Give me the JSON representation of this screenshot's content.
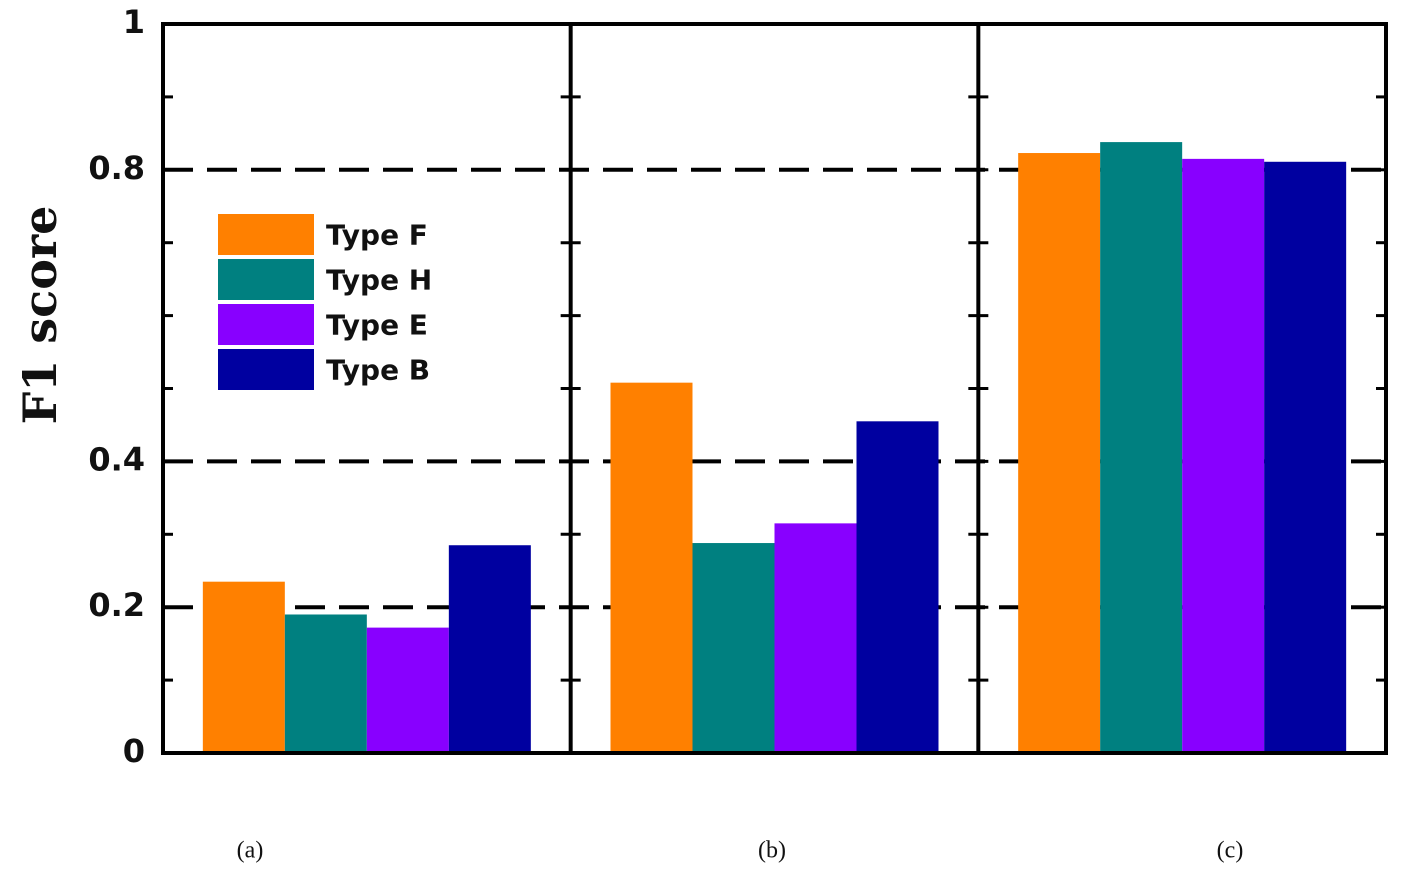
{
  "chart_data": {
    "type": "bar",
    "ylabel": "F1 score",
    "ylim": [
      0,
      1
    ],
    "y_tick_labels": [
      {
        "value": 0,
        "label": "0"
      },
      {
        "value": 0.2,
        "label": "0.2"
      },
      {
        "value": 0.4,
        "label": "0.4"
      },
      {
        "value": 0.8,
        "label": "0.8"
      },
      {
        "value": 1,
        "label": "1"
      }
    ],
    "reference_lines": [
      0.2,
      0.4,
      0.8
    ],
    "legend_position": "upper-left",
    "panels": [
      {
        "label": "(a)",
        "values": [
          0.235,
          0.19,
          0.172,
          0.285
        ]
      },
      {
        "label": "(b)",
        "values": [
          0.508,
          0.288,
          0.315,
          0.455
        ]
      },
      {
        "label": "(c)",
        "values": [
          0.823,
          0.838,
          0.815,
          0.811
        ]
      }
    ],
    "series": [
      {
        "name": "Type F",
        "color": "#ff8000"
      },
      {
        "name": "Type H",
        "color": "#008080"
      },
      {
        "name": "Type E",
        "color": "#8800ff"
      },
      {
        "name": "Type B",
        "color": "#0000a0"
      }
    ]
  }
}
